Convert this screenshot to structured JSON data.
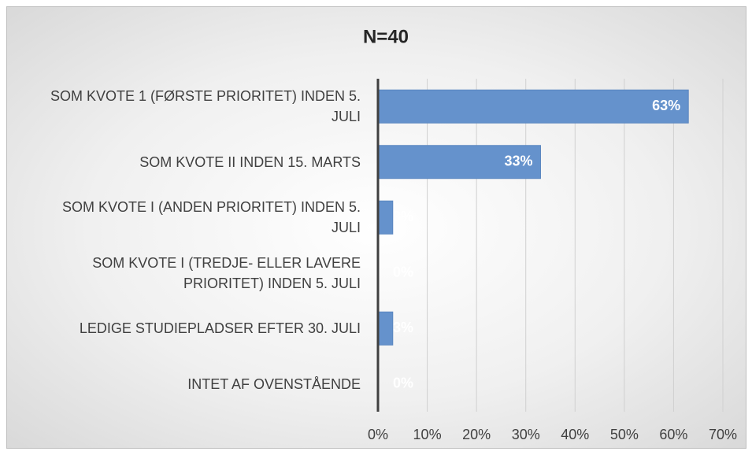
{
  "chart_data": {
    "type": "barh",
    "title": "N=40",
    "categories": [
      "SOM KVOTE 1 (FØRSTE PRIORITET) INDEN 5.\nJULI",
      "SOM KVOTE II INDEN 15. MARTS",
      "SOM KVOTE I (ANDEN PRIORITET) INDEN 5.\nJULI",
      "SOM KVOTE I (TREDJE- ELLER LAVERE\nPRIORITET) INDEN 5. JULI",
      "LEDIGE STUDIEPLADSER EFTER 30. JULI",
      "INTET AF OVENSTÅENDE"
    ],
    "values": [
      63,
      33,
      3,
      0,
      3,
      0
    ],
    "value_labels": [
      "63%",
      "33%",
      "3%",
      "0%",
      "3%",
      "0%"
    ],
    "color": "#6592cc",
    "xlim": [
      0,
      70
    ],
    "xticks": [
      {
        "value": 0,
        "label": "0%"
      },
      {
        "value": 10,
        "label": "10%"
      },
      {
        "value": 20,
        "label": "20%"
      },
      {
        "value": 30,
        "label": "30%"
      },
      {
        "value": 40,
        "label": "40%"
      },
      {
        "value": 50,
        "label": "50%"
      },
      {
        "value": 60,
        "label": "60%"
      },
      {
        "value": 70,
        "label": "70%"
      }
    ],
    "grid": true
  }
}
